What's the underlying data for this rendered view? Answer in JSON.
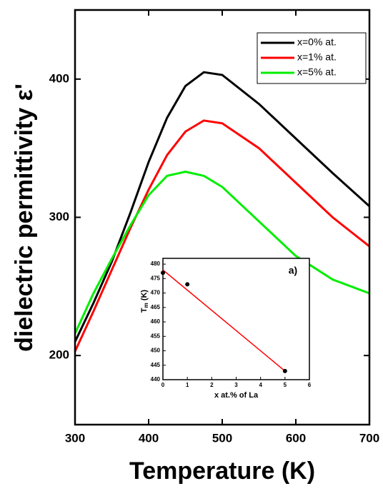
{
  "chart_data": {
    "type": "line",
    "xlabel": "Temperature (K)",
    "ylabel": "dielectric permittivity ε'",
    "x": [
      300,
      325,
      350,
      375,
      400,
      425,
      450,
      475,
      500,
      550,
      600,
      650,
      700
    ],
    "series": [
      {
        "name": "x=0% at.",
        "color": "#000000",
        "values": [
          210,
          238,
          268,
          303,
          340,
          372,
          395,
          405,
          403,
          382,
          357,
          332,
          308
        ]
      },
      {
        "name": "x=1% at.",
        "color": "#ff0000",
        "values": [
          203,
          232,
          262,
          292,
          320,
          345,
          362,
          370,
          368,
          350,
          325,
          300,
          279
        ]
      },
      {
        "name": "x=5% at.",
        "color": "#00ee00",
        "values": [
          216,
          245,
          270,
          294,
          316,
          330,
          333,
          330,
          322,
          297,
          272,
          255,
          245
        ]
      }
    ],
    "xlim": [
      300,
      700
    ],
    "xticks": [
      300,
      400,
      500,
      600,
      700
    ],
    "ylim": [
      150,
      450
    ],
    "yticks": [
      200,
      300,
      400
    ],
    "legend": "upper right",
    "inset": {
      "type": "scatter",
      "title": "a)",
      "xlabel": "x at.% of La",
      "ylabel": [
        "T",
        "m",
        " (K)"
      ],
      "x": [
        0,
        1,
        5
      ],
      "values": [
        477,
        473,
        443
      ],
      "color": "#000000",
      "fit": {
        "x": [
          0,
          5
        ],
        "values": [
          478,
          443
        ],
        "color": "#ff0000"
      },
      "xlim": [
        0,
        6
      ],
      "xticks": [
        0,
        1,
        2,
        3,
        4,
        5,
        6
      ],
      "ylim": [
        440,
        482
      ],
      "yticks": [
        440,
        445,
        450,
        455,
        460,
        465,
        470,
        475,
        480
      ]
    }
  }
}
